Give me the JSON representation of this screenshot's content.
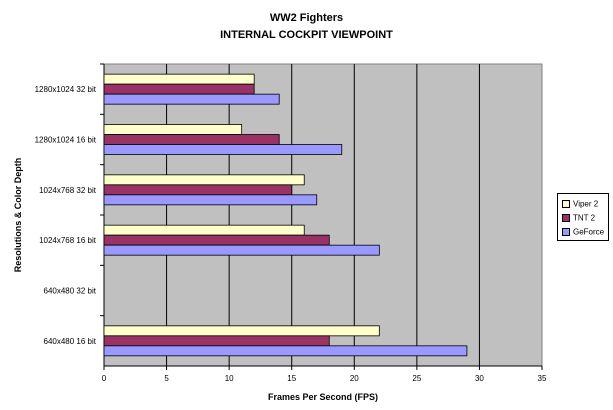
{
  "chart_data": {
    "type": "bar",
    "orientation": "horizontal",
    "title": "WW2 Fighters",
    "subtitle": "INTERNAL COCKPIT VIEWPOINT",
    "xlabel": "Frames Per Second (FPS)",
    "ylabel": "Resolutions & Color Depth",
    "xlim": [
      0,
      35
    ],
    "xticks": [
      0,
      5,
      10,
      15,
      20,
      25,
      30,
      35
    ],
    "grid": true,
    "legend_position": "right",
    "categories": [
      "1280x1024 32 bit",
      "1280x1024 16 bit",
      "1024x768 32 bit",
      "1024x768 16 bit",
      "640x480 32 bit",
      "640x480 16 bit"
    ],
    "series": [
      {
        "name": "Viper 2",
        "color": "#ffffcc",
        "values": [
          12,
          11,
          16,
          16,
          null,
          22
        ]
      },
      {
        "name": "TNT 2",
        "color": "#993366",
        "values": [
          12,
          14,
          15,
          18,
          null,
          18
        ]
      },
      {
        "name": "GeForce",
        "color": "#9999ff",
        "values": [
          14,
          19,
          17,
          22,
          null,
          29
        ]
      }
    ],
    "plot_background": "#c0c0c0"
  }
}
